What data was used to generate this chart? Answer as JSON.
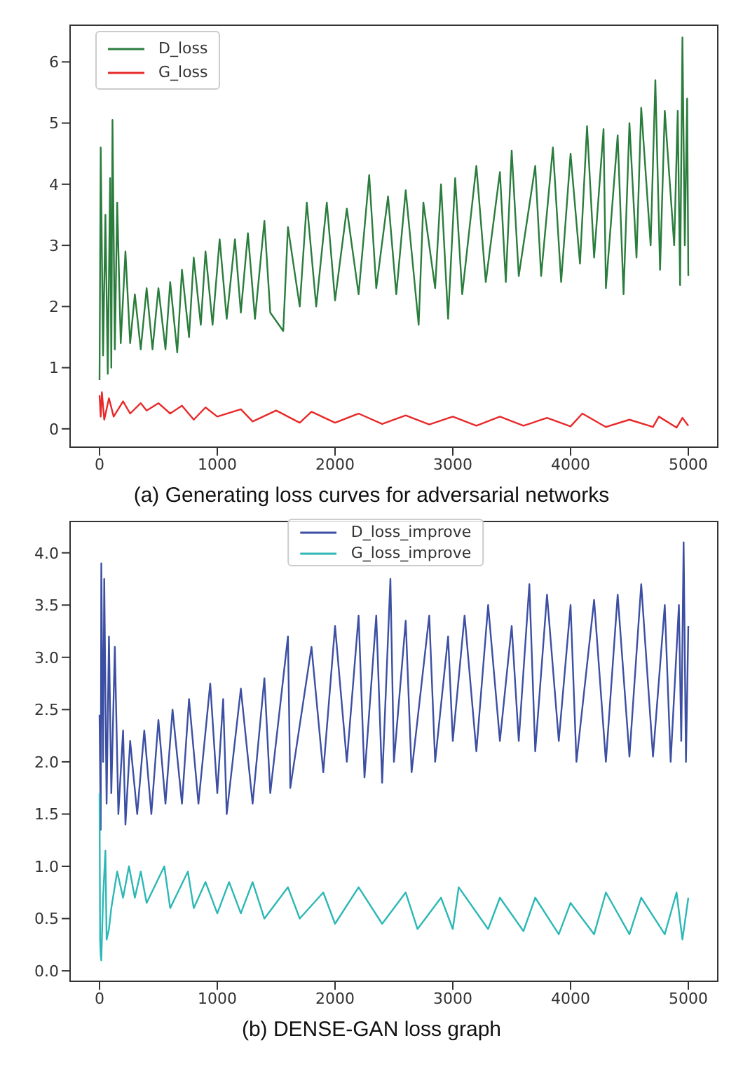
{
  "chart_data": [
    {
      "type": "line",
      "xlim": [
        -250,
        5250
      ],
      "ylim": [
        -0.3,
        6.6
      ],
      "xticks": [
        0,
        1000,
        2000,
        3000,
        4000,
        5000
      ],
      "yticks": [
        0,
        1,
        2,
        3,
        4,
        5,
        6
      ],
      "legend": "top left",
      "annotations": [
        "(a) Generating loss curves for adversarial networks"
      ],
      "series": [
        {
          "name": "D_loss",
          "color": "#2a7d3c",
          "x": [
            0,
            10,
            30,
            50,
            70,
            90,
            100,
            110,
            130,
            150,
            180,
            220,
            260,
            300,
            350,
            400,
            450,
            500,
            560,
            600,
            660,
            700,
            760,
            800,
            860,
            900,
            960,
            1020,
            1080,
            1150,
            1200,
            1260,
            1320,
            1400,
            1450,
            1560,
            1600,
            1700,
            1760,
            1840,
            1930,
            2000,
            2100,
            2200,
            2290,
            2350,
            2450,
            2520,
            2600,
            2710,
            2750,
            2850,
            2900,
            2960,
            3020,
            3080,
            3200,
            3280,
            3400,
            3450,
            3500,
            3560,
            3700,
            3750,
            3850,
            3920,
            4000,
            4080,
            4140,
            4200,
            4280,
            4300,
            4400,
            4450,
            4500,
            4560,
            4600,
            4680,
            4720,
            4760,
            4800,
            4880,
            4910,
            4930,
            4950,
            4970,
            4990,
            5000
          ],
          "values": [
            0.8,
            4.6,
            1.2,
            3.5,
            0.9,
            4.1,
            1.0,
            5.05,
            1.3,
            3.7,
            1.4,
            2.9,
            1.4,
            2.2,
            1.3,
            2.3,
            1.3,
            2.3,
            1.3,
            2.4,
            1.25,
            2.6,
            1.5,
            2.8,
            1.7,
            2.9,
            1.7,
            3.1,
            1.8,
            3.1,
            1.9,
            3.2,
            1.8,
            3.4,
            1.9,
            1.6,
            3.3,
            2.0,
            3.7,
            2.0,
            3.7,
            2.1,
            3.6,
            2.2,
            4.15,
            2.3,
            3.8,
            2.2,
            3.9,
            1.7,
            3.7,
            2.3,
            4.0,
            1.8,
            4.1,
            2.2,
            4.3,
            2.4,
            4.2,
            2.4,
            4.55,
            2.5,
            4.3,
            2.5,
            4.6,
            2.4,
            4.5,
            2.7,
            4.95,
            2.8,
            4.9,
            2.3,
            4.8,
            2.2,
            5.0,
            2.8,
            5.25,
            3.0,
            5.7,
            2.6,
            5.2,
            3.0,
            5.2,
            2.35,
            6.4,
            3.0,
            5.4,
            2.5
          ]
        },
        {
          "name": "G_loss",
          "color": "#e8292a",
          "x": [
            0,
            10,
            20,
            40,
            80,
            120,
            200,
            260,
            350,
            400,
            500,
            600,
            700,
            800,
            900,
            1000,
            1200,
            1300,
            1500,
            1700,
            1800,
            2000,
            2200,
            2400,
            2600,
            2800,
            3000,
            3200,
            3400,
            3600,
            3800,
            4000,
            4100,
            4300,
            4500,
            4700,
            4750,
            4900,
            4950,
            5000
          ],
          "values": [
            0.55,
            0.2,
            0.6,
            0.15,
            0.5,
            0.2,
            0.45,
            0.25,
            0.42,
            0.3,
            0.42,
            0.25,
            0.38,
            0.15,
            0.35,
            0.2,
            0.32,
            0.12,
            0.3,
            0.1,
            0.28,
            0.1,
            0.25,
            0.08,
            0.22,
            0.07,
            0.2,
            0.05,
            0.2,
            0.05,
            0.18,
            0.04,
            0.25,
            0.03,
            0.15,
            0.03,
            0.2,
            0.02,
            0.18,
            0.05
          ]
        }
      ]
    },
    {
      "type": "line",
      "xlim": [
        -250,
        5250
      ],
      "ylim": [
        -0.1,
        4.3
      ],
      "xticks": [
        0,
        1000,
        2000,
        3000,
        4000,
        5000
      ],
      "yticks": [
        {
          "value": 0,
          "label": "0.0"
        },
        0.5,
        {
          "value": 1,
          "label": "1.0"
        },
        1.5,
        {
          "value": 2,
          "label": "2.0"
        },
        2.5,
        {
          "value": 3,
          "label": "3.0"
        },
        3.5,
        {
          "value": 4,
          "label": "4.0"
        }
      ],
      "legend": "top",
      "annotations": [
        "(b) DENSE-GAN loss graph"
      ],
      "series": [
        {
          "name": "D_loss_improve",
          "color": "#3c4fa3",
          "x": [
            0,
            10,
            15,
            30,
            40,
            60,
            80,
            100,
            130,
            160,
            200,
            220,
            260,
            320,
            380,
            440,
            500,
            560,
            620,
            700,
            760,
            840,
            940,
            1000,
            1050,
            1080,
            1200,
            1300,
            1400,
            1450,
            1600,
            1620,
            1800,
            1900,
            2000,
            2100,
            2200,
            2250,
            2350,
            2400,
            2470,
            2500,
            2600,
            2650,
            2800,
            2850,
            2960,
            3000,
            3100,
            3200,
            3300,
            3400,
            3500,
            3560,
            3650,
            3700,
            3800,
            3900,
            4000,
            4050,
            4200,
            4300,
            4400,
            4500,
            4600,
            4700,
            4800,
            4850,
            4920,
            4940,
            4960,
            4980,
            5000
          ],
          "values": [
            2.45,
            1.35,
            3.9,
            2.0,
            3.75,
            1.6,
            3.2,
            1.7,
            3.1,
            1.5,
            2.3,
            1.4,
            2.2,
            1.5,
            2.3,
            1.5,
            2.4,
            1.6,
            2.5,
            1.6,
            2.6,
            1.6,
            2.75,
            1.7,
            2.6,
            1.5,
            2.7,
            1.6,
            2.8,
            1.7,
            3.2,
            1.75,
            3.1,
            1.9,
            3.3,
            2.0,
            3.4,
            1.85,
            3.4,
            1.8,
            3.75,
            2.0,
            3.35,
            1.9,
            3.4,
            2.0,
            3.2,
            2.2,
            3.4,
            2.1,
            3.5,
            2.2,
            3.3,
            2.2,
            3.7,
            2.1,
            3.6,
            2.2,
            3.5,
            2.0,
            3.55,
            2.0,
            3.6,
            2.05,
            3.7,
            2.05,
            3.5,
            2.0,
            3.5,
            2.2,
            4.1,
            2.0,
            3.3
          ]
        },
        {
          "name": "G_loss_improve",
          "color": "#2cb8b6",
          "x": [
            0,
            5,
            10,
            15,
            30,
            50,
            60,
            80,
            100,
            150,
            200,
            250,
            300,
            350,
            400,
            550,
            600,
            750,
            800,
            900,
            1000,
            1100,
            1200,
            1300,
            1400,
            1600,
            1700,
            1900,
            2000,
            2200,
            2400,
            2600,
            2700,
            2900,
            3000,
            3050,
            3300,
            3400,
            3600,
            3700,
            3900,
            4000,
            4200,
            4300,
            4500,
            4600,
            4800,
            4900,
            4950,
            5000
          ],
          "values": [
            1.7,
            0.3,
            0.15,
            0.1,
            0.7,
            1.15,
            0.3,
            0.4,
            0.6,
            0.95,
            0.7,
            1.0,
            0.7,
            0.95,
            0.65,
            1.0,
            0.6,
            0.95,
            0.6,
            0.85,
            0.55,
            0.85,
            0.55,
            0.85,
            0.5,
            0.8,
            0.5,
            0.75,
            0.45,
            0.8,
            0.45,
            0.75,
            0.4,
            0.7,
            0.4,
            0.8,
            0.4,
            0.7,
            0.38,
            0.7,
            0.35,
            0.65,
            0.35,
            0.75,
            0.35,
            0.7,
            0.35,
            0.75,
            0.3,
            0.7
          ]
        }
      ]
    }
  ]
}
